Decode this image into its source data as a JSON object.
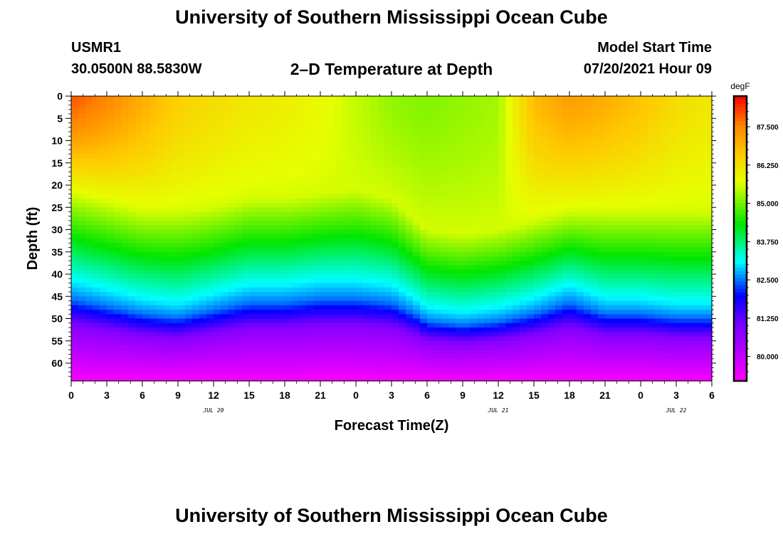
{
  "header": {
    "title": "University of Southern Mississippi Ocean Cube",
    "station_id": "USMR1",
    "station_location": "30.0500N  88.5830W",
    "plot_title": "2–D Temperature at Depth",
    "start_label": "Model Start Time",
    "start_value": "07/20/2021 Hour 09"
  },
  "footer": {
    "title": "University of Southern Mississippi Ocean Cube"
  },
  "chart_data": {
    "type": "heatmap",
    "title": "2–D Temperature at Depth",
    "xlabel": "Forecast Time(Z)",
    "ylabel": "Depth (ft)",
    "x_hours": [
      0,
      54
    ],
    "x_tick_labels": [
      "0",
      "3",
      "6",
      "9",
      "12",
      "15",
      "18",
      "21",
      "0",
      "3",
      "6",
      "9",
      "12",
      "15",
      "18",
      "21",
      "0",
      "3",
      "6"
    ],
    "date_labels": [
      {
        "text": "JUL 20",
        "hour": 12
      },
      {
        "text": "JUL 21",
        "hour": 36
      },
      {
        "text": "JUL 22",
        "hour": 51
      }
    ],
    "ylim": [
      0,
      64
    ],
    "y_ticks": [
      0,
      5,
      10,
      15,
      20,
      25,
      30,
      35,
      40,
      45,
      50,
      55,
      60
    ],
    "colorbar": {
      "unit": "degF",
      "range": [
        79.2,
        88.5
      ],
      "ticks": [
        80.0,
        81.25,
        82.5,
        83.75,
        85.0,
        86.25,
        87.5
      ],
      "tick_labels": [
        "80.000",
        "81.250",
        "82.500",
        "83.750",
        "85.000",
        "86.250",
        "87.500"
      ]
    },
    "surface_temperature": {
      "hours": [
        0,
        3,
        6,
        9,
        12,
        15,
        18,
        21,
        24,
        27,
        30,
        33,
        36,
        39,
        42,
        45,
        48,
        51,
        54
      ],
      "values": [
        87.9,
        87.5,
        87.0,
        86.5,
        86.3,
        86.1,
        86.0,
        85.8,
        85.5,
        85.2,
        85.1,
        85.2,
        85.3,
        86.8,
        87.2,
        87.0,
        86.7,
        86.3,
        86.1
      ]
    },
    "thermocline_depth_ft": {
      "hours": [
        0,
        3,
        6,
        9,
        12,
        15,
        18,
        21,
        24,
        27,
        29,
        30,
        33,
        36,
        39,
        42,
        45,
        48,
        51,
        54
      ],
      "values": [
        42,
        44,
        46,
        47,
        45,
        43,
        43,
        42,
        42,
        43,
        46,
        48,
        49,
        48,
        46,
        43,
        46,
        46,
        47,
        47
      ]
    },
    "mixed_layer_depth_ft": {
      "hours": [
        0,
        3,
        6,
        9,
        12,
        15,
        18,
        21,
        24,
        27,
        30,
        33,
        36,
        39,
        42,
        45,
        48,
        51,
        54
      ],
      "values": [
        22,
        24,
        26,
        26,
        25,
        23,
        23,
        22,
        21,
        23,
        30,
        31,
        30,
        28,
        26,
        26,
        26,
        26,
        26
      ]
    },
    "bottom_temperature": 79.3
  }
}
